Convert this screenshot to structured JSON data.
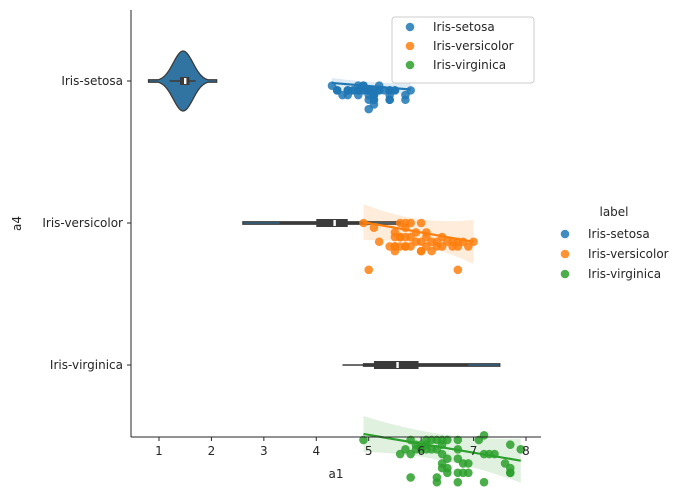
{
  "chart_data": {
    "type": "scatter",
    "xlabel": "a1",
    "ylabel": "a4",
    "xlim": [
      0.5,
      8.25
    ],
    "x_ticks": [
      1,
      2,
      3,
      4,
      5,
      6,
      7,
      8
    ],
    "categories": [
      "Iris-setosa",
      "Iris-versicolor",
      "Iris-virginica"
    ],
    "grid": false,
    "colors": {
      "Iris-setosa": "#1f77b4",
      "Iris-versicolor": "#ff7f0e",
      "Iris-virginica": "#2ca02c",
      "violin": "#3274a1"
    },
    "legend_inner": {
      "placement": "top-right",
      "entries": [
        "Iris-setosa",
        "Iris-versicolor",
        "Iris-virginica"
      ]
    },
    "legend_outer": {
      "placement": "right",
      "title": "label",
      "entries": [
        "Iris-setosa",
        "Iris-versicolor",
        "Iris-virginica"
      ]
    },
    "series": [
      {
        "name": "Iris-setosa",
        "points": [
          [
            4.3,
            0.1
          ],
          [
            4.4,
            0.2
          ],
          [
            4.4,
            0.2
          ],
          [
            4.4,
            0.2
          ],
          [
            4.5,
            0.3
          ],
          [
            4.6,
            0.2
          ],
          [
            4.6,
            0.2
          ],
          [
            4.6,
            0.3
          ],
          [
            4.6,
            0.2
          ],
          [
            4.7,
            0.2
          ],
          [
            4.7,
            0.2
          ],
          [
            4.8,
            0.2
          ],
          [
            4.8,
            0.1
          ],
          [
            4.8,
            0.3
          ],
          [
            4.8,
            0.2
          ],
          [
            4.8,
            0.2
          ],
          [
            4.9,
            0.1
          ],
          [
            4.9,
            0.1
          ],
          [
            4.9,
            0.2
          ],
          [
            4.9,
            0.2
          ],
          [
            5.0,
            0.2
          ],
          [
            5.0,
            0.4
          ],
          [
            5.0,
            0.2
          ],
          [
            5.0,
            0.2
          ],
          [
            5.0,
            0.3
          ],
          [
            5.0,
            0.6
          ],
          [
            5.0,
            0.2
          ],
          [
            5.0,
            0.2
          ],
          [
            5.1,
            0.2
          ],
          [
            5.1,
            0.4
          ],
          [
            5.1,
            0.3
          ],
          [
            5.1,
            0.3
          ],
          [
            5.1,
            0.3
          ],
          [
            5.1,
            0.5
          ],
          [
            5.1,
            0.2
          ],
          [
            5.1,
            0.4
          ],
          [
            5.2,
            0.2
          ],
          [
            5.2,
            0.2
          ],
          [
            5.2,
            0.1
          ],
          [
            5.3,
            0.2
          ],
          [
            5.4,
            0.2
          ],
          [
            5.4,
            0.4
          ],
          [
            5.4,
            0.3
          ],
          [
            5.4,
            0.2
          ],
          [
            5.4,
            0.4
          ],
          [
            5.4,
            0.2
          ],
          [
            5.5,
            0.2
          ],
          [
            5.5,
            0.2
          ],
          [
            5.7,
            0.4
          ],
          [
            5.7,
            0.3
          ],
          [
            5.8,
            0.2
          ]
        ],
        "fit": {
          "x": [
            4.3,
            5.8
          ],
          "y": [
            0.17,
            0.31
          ]
        },
        "violin": {
          "center": 1.46,
          "extent": [
            0.8,
            2.1
          ],
          "quartiles": [
            1.4,
            1.58
          ],
          "median": 1.5,
          "whiskers": [
            1.2,
            1.7
          ]
        }
      },
      {
        "name": "Iris-versicolor",
        "points": [
          [
            4.9,
            0.0
          ],
          [
            5.0,
            1.0
          ],
          [
            5.1,
            0.1
          ],
          [
            5.2,
            0.4
          ],
          [
            5.4,
            0.5
          ],
          [
            5.5,
            0.2
          ],
          [
            5.5,
            0.3
          ],
          [
            5.5,
            0.5
          ],
          [
            5.5,
            0.5
          ],
          [
            5.5,
            0.6
          ],
          [
            5.6,
            0.0
          ],
          [
            5.6,
            0.3
          ],
          [
            5.6,
            0.5
          ],
          [
            5.6,
            0.3
          ],
          [
            5.7,
            0.0
          ],
          [
            5.7,
            0.1
          ],
          [
            5.7,
            0.3
          ],
          [
            5.7,
            0.5
          ],
          [
            5.7,
            0.5
          ],
          [
            5.8,
            0.0
          ],
          [
            5.8,
            0.3
          ],
          [
            5.8,
            0.5
          ],
          [
            5.9,
            0.2
          ],
          [
            5.9,
            0.4
          ],
          [
            6.0,
            0.0
          ],
          [
            6.0,
            0.4
          ],
          [
            6.0,
            0.6
          ],
          [
            6.0,
            0.6
          ],
          [
            6.1,
            0.2
          ],
          [
            6.1,
            0.3
          ],
          [
            6.1,
            0.5
          ],
          [
            6.2,
            0.4
          ],
          [
            6.2,
            0.6
          ],
          [
            6.3,
            0.4
          ],
          [
            6.3,
            0.5
          ],
          [
            6.4,
            0.3
          ],
          [
            6.4,
            0.5
          ],
          [
            6.5,
            0.4
          ],
          [
            6.6,
            0.4
          ],
          [
            6.6,
            0.5
          ],
          [
            6.7,
            0.4
          ],
          [
            6.7,
            0.5
          ],
          [
            6.7,
            1.0
          ],
          [
            6.8,
            0.4
          ],
          [
            6.9,
            0.5
          ],
          [
            7.0,
            0.4
          ]
        ],
        "fit": {
          "x": [
            4.9,
            7.0
          ],
          "y": [
            0.11,
            0.53
          ]
        },
        "violin": {
          "center": 1.0,
          "extent": [
            2.6,
            5.6
          ],
          "quartiles": [
            4.0,
            4.6
          ],
          "median": 4.35,
          "whiskers": [
            3.3,
            5.1
          ]
        }
      },
      {
        "name": "Iris-virginica",
        "points": [
          [
            4.9,
            1.6
          ],
          [
            5.6,
            1.9
          ],
          [
            5.7,
            1.8
          ],
          [
            5.8,
            2.4
          ],
          [
            5.8,
            1.9
          ],
          [
            5.8,
            1.6
          ],
          [
            5.9,
            1.7
          ],
          [
            5.9,
            1.8
          ],
          [
            6.0,
            1.7
          ],
          [
            6.0,
            1.8
          ],
          [
            6.1,
            1.6
          ],
          [
            6.1,
            1.7
          ],
          [
            6.1,
            1.8
          ],
          [
            6.2,
            1.6
          ],
          [
            6.2,
            1.8
          ],
          [
            6.3,
            1.6
          ],
          [
            6.3,
            1.8
          ],
          [
            6.3,
            2.4
          ],
          [
            6.3,
            2.5
          ],
          [
            6.4,
            1.6
          ],
          [
            6.4,
            1.7
          ],
          [
            6.4,
            1.9
          ],
          [
            6.4,
            2.1
          ],
          [
            6.4,
            2.2
          ],
          [
            6.5,
            1.6
          ],
          [
            6.5,
            2.0
          ],
          [
            6.5,
            2.2
          ],
          [
            6.5,
            2.3
          ],
          [
            6.7,
            1.6
          ],
          [
            6.7,
            1.8
          ],
          [
            6.7,
            2.0
          ],
          [
            6.7,
            2.3
          ],
          [
            6.7,
            2.5
          ],
          [
            6.8,
            2.1
          ],
          [
            6.8,
            2.3
          ],
          [
            6.9,
            2.1
          ],
          [
            6.9,
            2.3
          ],
          [
            7.1,
            1.6
          ],
          [
            7.2,
            1.5
          ],
          [
            7.2,
            1.9
          ],
          [
            7.2,
            2.5
          ],
          [
            7.3,
            1.9
          ],
          [
            7.4,
            1.9
          ],
          [
            7.6,
            2.1
          ],
          [
            7.7,
            2.2
          ],
          [
            7.7,
            2.3
          ],
          [
            7.7,
            2.3
          ],
          [
            7.7,
            1.7
          ],
          [
            7.9,
            1.8
          ]
        ],
        "fit": {
          "x": [
            4.9,
            7.9
          ],
          "y": [
            1.6,
            2.17
          ]
        },
        "violin": {
          "center": 2.0,
          "extent": [
            4.9,
            7.5
          ],
          "quartiles": [
            5.1,
            5.95
          ],
          "median": 5.55,
          "whiskers": [
            4.5,
            6.9
          ]
        }
      }
    ]
  }
}
